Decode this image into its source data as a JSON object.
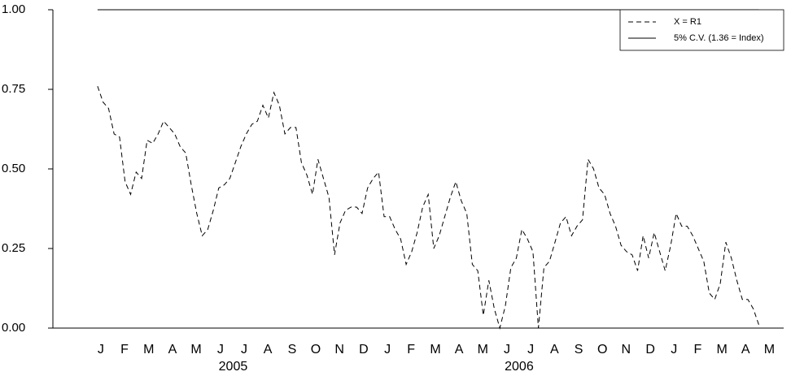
{
  "chart_data": {
    "type": "line",
    "series": [
      {
        "name": "X = R1",
        "color": "#000000",
        "dash": true,
        "x": [
          0,
          1,
          2,
          3,
          4,
          5,
          6,
          7,
          8,
          9,
          10,
          11,
          12,
          13,
          14,
          15,
          16,
          17,
          18,
          19,
          20,
          21,
          22,
          23,
          24,
          25,
          26,
          27,
          28,
          29,
          30,
          31,
          32,
          33,
          34,
          35,
          36,
          37,
          38,
          39,
          40,
          41,
          42,
          43,
          44,
          45,
          46,
          47,
          48,
          49,
          50,
          51,
          52,
          53,
          54,
          55,
          56,
          57,
          58,
          59,
          60,
          61,
          62,
          63,
          64,
          65,
          66,
          67,
          68,
          69,
          70,
          71,
          72,
          73,
          74,
          75,
          76,
          77,
          78,
          79,
          80,
          81,
          82,
          83,
          84,
          85,
          86,
          87,
          88,
          89,
          90,
          91,
          92,
          93,
          94,
          95,
          96,
          97,
          98,
          99,
          100,
          101,
          102,
          103,
          104,
          105,
          106,
          107,
          108,
          109,
          110,
          111,
          112,
          113,
          114,
          115,
          116,
          117,
          118,
          119,
          120
        ],
        "values": [
          0.76,
          0.71,
          0.69,
          0.61,
          0.6,
          0.46,
          0.42,
          0.49,
          0.47,
          0.59,
          0.58,
          0.61,
          0.65,
          0.63,
          0.61,
          0.57,
          0.55,
          0.45,
          0.36,
          0.29,
          0.31,
          0.37,
          0.44,
          0.45,
          0.47,
          0.52,
          0.57,
          0.61,
          0.64,
          0.65,
          0.7,
          0.66,
          0.74,
          0.7,
          0.61,
          0.63,
          0.63,
          0.52,
          0.48,
          0.42,
          0.53,
          0.47,
          0.41,
          0.23,
          0.33,
          0.37,
          0.38,
          0.38,
          0.36,
          0.44,
          0.47,
          0.49,
          0.35,
          0.35,
          0.31,
          0.28,
          0.2,
          0.24,
          0.3,
          0.38,
          0.42,
          0.25,
          0.29,
          0.35,
          0.41,
          0.46,
          0.4,
          0.36,
          0.2,
          0.18,
          0.04,
          0.15,
          0.06,
          0.0,
          0.07,
          0.19,
          0.22,
          0.31,
          0.28,
          0.24,
          0.0,
          0.19,
          0.21,
          0.27,
          0.33,
          0.35,
          0.29,
          0.32,
          0.34,
          0.53,
          0.5,
          0.44,
          0.42,
          0.36,
          0.32,
          0.26,
          0.24,
          0.23,
          0.18,
          0.29,
          0.22,
          0.3,
          0.24,
          0.18,
          0.26,
          0.36,
          0.32,
          0.32,
          0.29,
          0.25,
          0.21,
          0.11,
          0.09,
          0.14,
          0.27,
          0.22,
          0.15,
          0.09,
          0.09,
          0.06,
          0.01
        ]
      },
      {
        "name": "5% C.V. (1.36 = Index)",
        "color": "#000000",
        "dash": false,
        "x": [
          0,
          120
        ],
        "values": [
          1.0,
          1.0
        ]
      }
    ],
    "xlim": [
      -8.1,
      124.5
    ],
    "xticks": [
      {
        "value": 0.6,
        "label": "J"
      },
      {
        "value": 4.9,
        "label": "F"
      },
      {
        "value": 9.3,
        "label": "M"
      },
      {
        "value": 13.6,
        "label": "A"
      },
      {
        "value": 17.9,
        "label": "M"
      },
      {
        "value": 22.3,
        "label": "J"
      },
      {
        "value": 26.6,
        "label": "J"
      },
      {
        "value": 30.9,
        "label": "A"
      },
      {
        "value": 35.3,
        "label": "S"
      },
      {
        "value": 39.6,
        "label": "O"
      },
      {
        "value": 43.9,
        "label": "N"
      },
      {
        "value": 48.3,
        "label": "D"
      },
      {
        "value": 52.6,
        "label": "J"
      },
      {
        "value": 56.9,
        "label": "F"
      },
      {
        "value": 61.3,
        "label": "M"
      },
      {
        "value": 65.6,
        "label": "A"
      },
      {
        "value": 69.9,
        "label": "M"
      },
      {
        "value": 74.3,
        "label": "J"
      },
      {
        "value": 78.6,
        "label": "J"
      },
      {
        "value": 82.9,
        "label": "A"
      },
      {
        "value": 87.3,
        "label": "S"
      },
      {
        "value": 91.6,
        "label": "O"
      },
      {
        "value": 95.9,
        "label": "N"
      },
      {
        "value": 100.3,
        "label": "D"
      },
      {
        "value": 104.6,
        "label": "J"
      },
      {
        "value": 108.9,
        "label": "F"
      },
      {
        "value": 113.3,
        "label": "M"
      },
      {
        "value": 117.6,
        "label": "A"
      },
      {
        "value": 121.9,
        "label": "M"
      }
    ],
    "year_labels": [
      {
        "value": 24.6,
        "label": "2005"
      },
      {
        "value": 76.5,
        "label": "2006"
      }
    ],
    "ylim": [
      0,
      1
    ],
    "yticks": [
      {
        "value": 0,
        "label": "0.00"
      },
      {
        "value": 0.25,
        "label": "0.25"
      },
      {
        "value": 0.5,
        "label": "0.50"
      },
      {
        "value": 0.75,
        "label": "0.75"
      },
      {
        "value": 1,
        "label": "1.00"
      }
    ],
    "legend": "upper right"
  }
}
